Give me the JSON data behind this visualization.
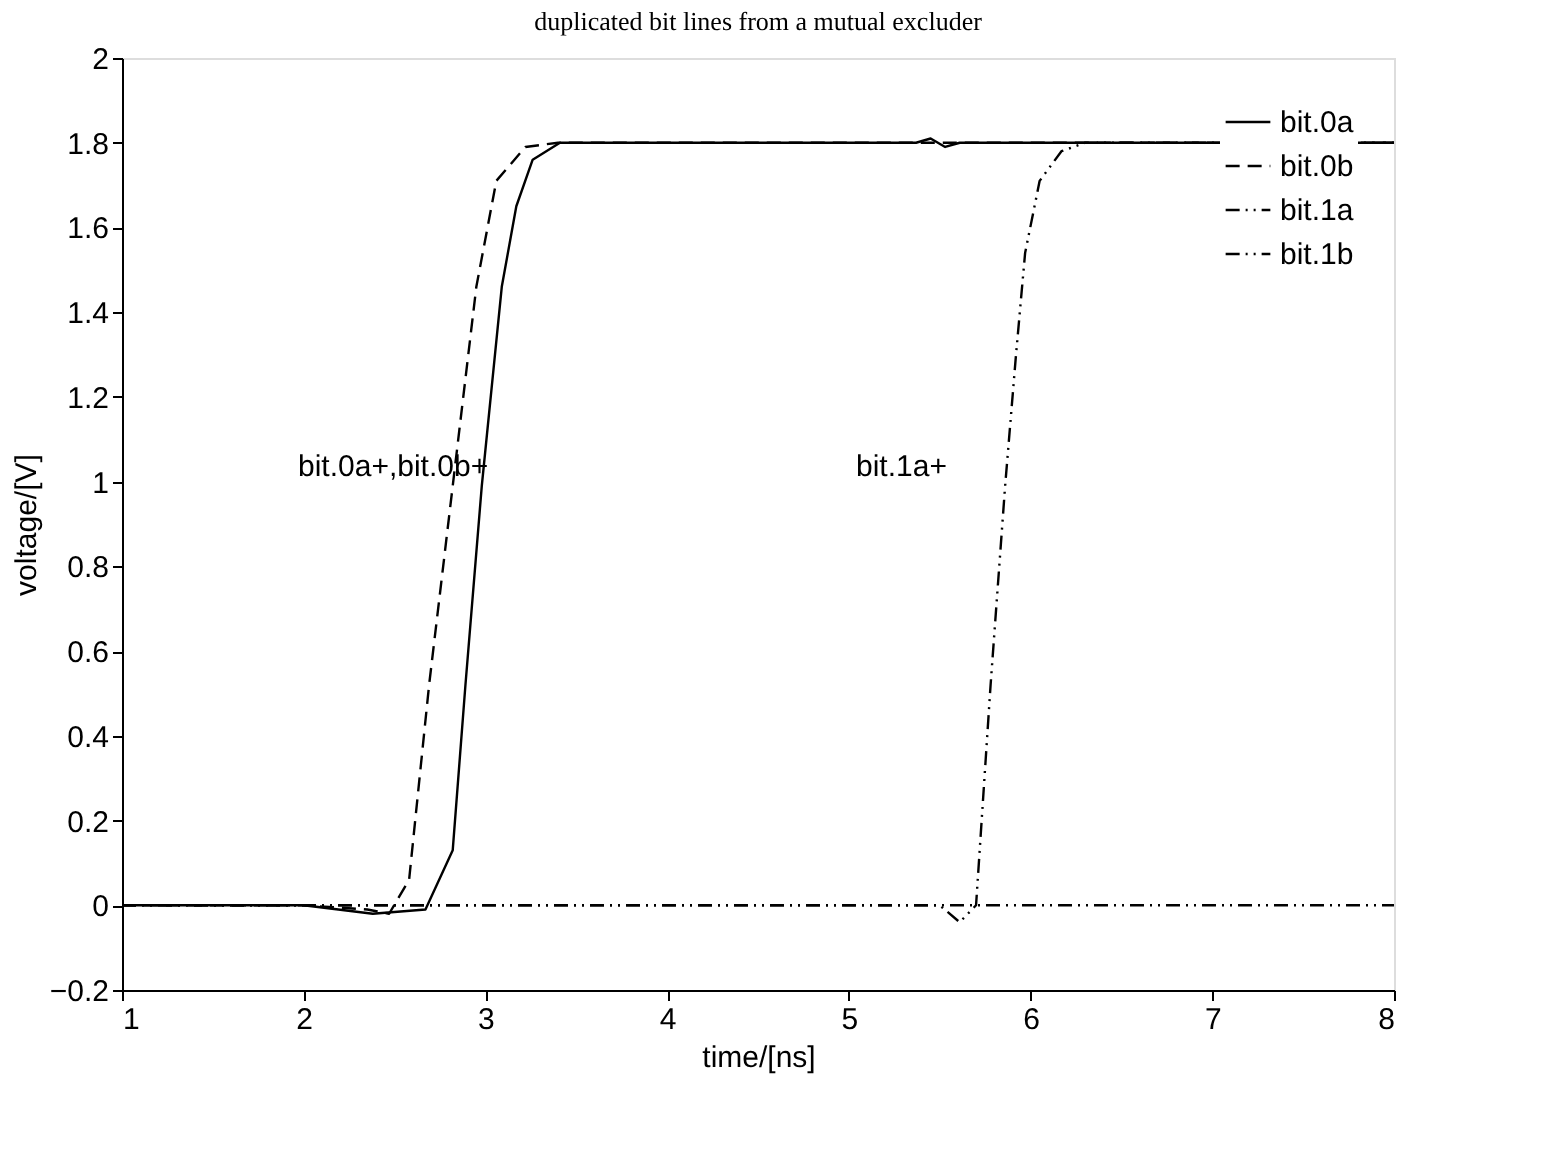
{
  "chart_data": {
    "type": "line",
    "title": "duplicated bit lines from a mutual excluder",
    "xlabel": "time/[ns]",
    "ylabel": "voltage/[V]",
    "xlim": [
      1,
      8
    ],
    "xticks": [
      1,
      2,
      3,
      4,
      5,
      6,
      7,
      8
    ],
    "ylim": [
      -0.2,
      2
    ],
    "yticks": [
      {
        "value": -0.2,
        "label": "−0.2"
      },
      0,
      0.2,
      0.4,
      0.6,
      0.8,
      1,
      1.2,
      1.4,
      1.6,
      1.8,
      2
    ],
    "grid": false,
    "legend": "top right",
    "marker": "none",
    "annotations": [
      "bit.0a+,bit.0b+",
      "bit.1a+"
    ],
    "series": [
      {
        "name": "bit.0a",
        "color": "#000000",
        "line_style": "solid",
        "x": [
          1,
          2,
          2.38,
          2.67,
          2.82,
          2.89,
          2.98,
          3.09,
          3.17,
          3.26,
          3.41,
          5.37,
          5.45,
          5.53,
          5.61,
          8
        ],
        "values": [
          0,
          0,
          -0.02,
          -0.01,
          0.13,
          0.52,
          0.99,
          1.46,
          1.65,
          1.76,
          1.8,
          1.8,
          1.81,
          1.79,
          1.8,
          1.8
        ]
      },
      {
        "name": "bit.0b",
        "color": "#000000",
        "line_style": "dashed",
        "x": [
          1,
          2,
          2.35,
          2.47,
          2.58,
          2.69,
          2.82,
          2.95,
          3.06,
          3.22,
          3.4,
          8
        ],
        "values": [
          0,
          0,
          -0.01,
          -0.02,
          0.06,
          0.52,
          0.99,
          1.46,
          1.71,
          1.79,
          1.8,
          1.8
        ]
      },
      {
        "name": "bit.1a",
        "color": "#000000",
        "line_style": "dotted",
        "x": [
          1,
          5.5,
          5.61,
          5.7,
          5.78,
          5.86,
          5.92,
          5.97,
          6.05,
          6.17,
          6.3,
          8
        ],
        "values": [
          0,
          0,
          -0.04,
          0,
          0.52,
          0.99,
          1.3,
          1.54,
          1.71,
          1.78,
          1.8,
          1.8
        ]
      },
      {
        "name": "bit.1b",
        "color": "#000000",
        "line_style": "dotted",
        "x": [
          1,
          8
        ],
        "values": [
          0,
          0
        ]
      }
    ]
  }
}
